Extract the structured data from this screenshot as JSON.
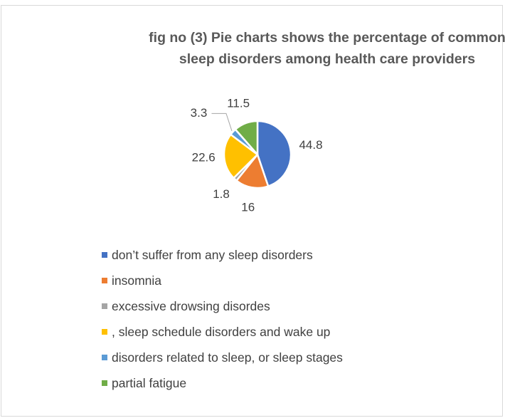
{
  "chart_data": {
    "type": "pie",
    "title": "fig no (3) Pie charts shows the  percentage of common sleep disorders among health care providers",
    "categories": [
      "don’t suffer from any sleep disorders",
      "insomnia",
      "excessive drowsing disordes",
      ", sleep schedule disorders and wake up",
      "disorders related to sleep, or sleep stages",
      "partial fatigue"
    ],
    "values": [
      44.8,
      16,
      1.8,
      22.6,
      3.3,
      11.5
    ],
    "colors": [
      "#4472c4",
      "#ed7d31",
      "#a5a5a5",
      "#ffc000",
      "#5b9bd5",
      "#70ad47"
    ],
    "legend": "bottom"
  }
}
